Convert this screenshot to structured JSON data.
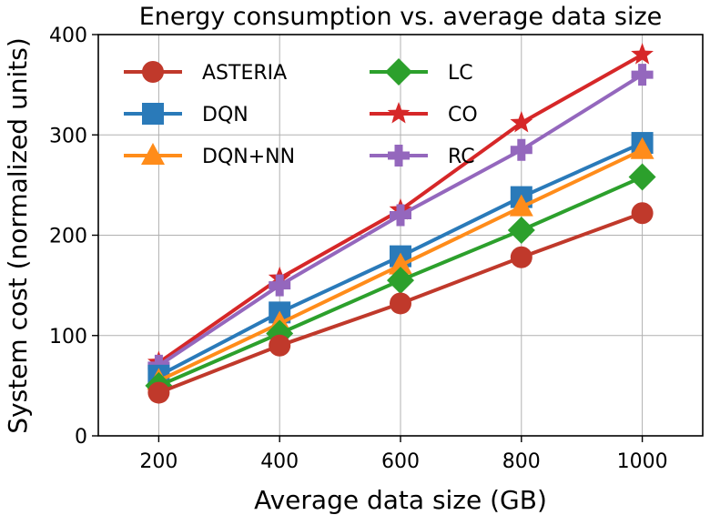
{
  "chart_data": {
    "type": "line",
    "title": "Energy consumption  vs. average data size",
    "xlabel": "Average data size (GB)",
    "ylabel": "System cost (normalized units)",
    "x": [
      200,
      400,
      600,
      800,
      1000
    ],
    "xlim": [
      100,
      1100
    ],
    "ylim": [
      0,
      400
    ],
    "xticks": [
      "200",
      "400",
      "600",
      "800",
      "1000"
    ],
    "yticks": [
      "0",
      "100",
      "200",
      "300",
      "400"
    ],
    "grid": true,
    "legend_position": "top-left",
    "series": [
      {
        "name": "ASTERIA",
        "marker": "circle",
        "color": "#c0392b",
        "values": [
          43,
          90,
          132,
          178,
          222
        ]
      },
      {
        "name": "DQN",
        "marker": "square",
        "color": "#2a7ab9",
        "values": [
          60,
          123,
          179,
          238,
          292
        ]
      },
      {
        "name": "DQN+NN",
        "marker": "triangle",
        "color": "#ff8c1a",
        "values": [
          55,
          112,
          170,
          228,
          285
        ]
      },
      {
        "name": "LC",
        "marker": "diamond",
        "color": "#2ca02c",
        "values": [
          50,
          102,
          155,
          205,
          258
        ]
      },
      {
        "name": "CO",
        "marker": "star",
        "color": "#d62728",
        "values": [
          73,
          157,
          225,
          312,
          380
        ]
      },
      {
        "name": "RC",
        "marker": "plus",
        "color": "#9467bd",
        "values": [
          70,
          150,
          220,
          285,
          360
        ]
      }
    ]
  }
}
